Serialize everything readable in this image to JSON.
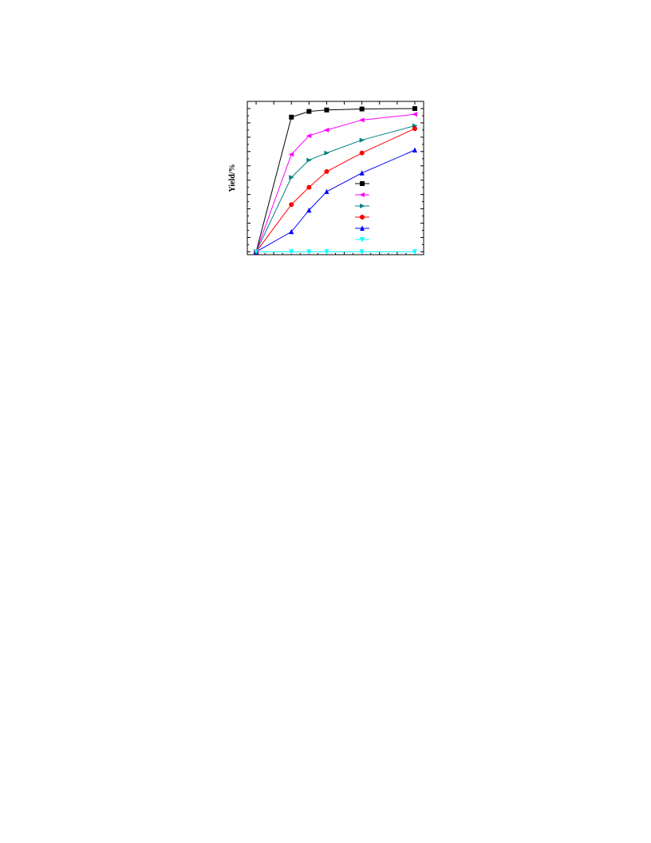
{
  "chart_data": {
    "type": "line",
    "title": "",
    "xlabel": "",
    "ylabel": "Yield/%",
    "xlim": [
      -0.5,
      9.5
    ],
    "ylim": [
      -2,
      105
    ],
    "grid": false,
    "legend_position": "center-right",
    "x": [
      0,
      2,
      3,
      4,
      6,
      9
    ],
    "series": [
      {
        "marker": "square",
        "color": "#000000",
        "values": [
          0,
          94,
          98,
          99,
          99.7,
          100
        ]
      },
      {
        "marker": "triangle-left",
        "color": "#ff00ff",
        "values": [
          0,
          68,
          81,
          85,
          92,
          96
        ]
      },
      {
        "marker": "triangle-right",
        "color": "#008080",
        "values": [
          0,
          52,
          64,
          69,
          78,
          88
        ]
      },
      {
        "marker": "circle",
        "color": "#ff0000",
        "values": [
          0,
          33,
          45,
          56,
          69,
          86
        ]
      },
      {
        "marker": "triangle-up",
        "color": "#0000ff",
        "values": [
          0,
          14,
          29,
          42,
          55,
          71
        ]
      },
      {
        "marker": "triangle-down",
        "color": "#00ffff",
        "values": [
          0,
          0,
          0,
          0,
          0,
          0
        ]
      }
    ]
  }
}
